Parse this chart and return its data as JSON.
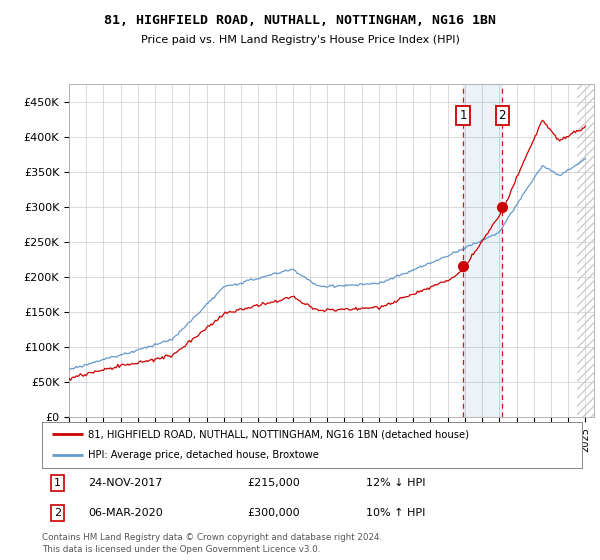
{
  "title": "81, HIGHFIELD ROAD, NUTHALL, NOTTINGHAM, NG16 1BN",
  "subtitle": "Price paid vs. HM Land Registry's House Price Index (HPI)",
  "ylim": [
    0,
    475000
  ],
  "yticks": [
    0,
    50000,
    100000,
    150000,
    200000,
    250000,
    300000,
    350000,
    400000,
    450000
  ],
  "ytick_labels": [
    "£0",
    "£50K",
    "£100K",
    "£150K",
    "£200K",
    "£250K",
    "£300K",
    "£350K",
    "£400K",
    "£450K"
  ],
  "xlim_start": 1995.0,
  "xlim_end": 2025.5,
  "line1_color": "#cc0000",
  "line2_color": "#6699cc",
  "marker1_date": 2017.9,
  "marker2_date": 2020.17,
  "marker1_price": 215000,
  "marker2_price": 300000,
  "transaction1": [
    "1",
    "24-NOV-2017",
    "£215,000",
    "12% ↓ HPI"
  ],
  "transaction2": [
    "2",
    "06-MAR-2020",
    "£300,000",
    "10% ↑ HPI"
  ],
  "legend1": "81, HIGHFIELD ROAD, NUTHALL, NOTTINGHAM, NG16 1BN (detached house)",
  "legend2": "HPI: Average price, detached house, Broxtowe",
  "footnote": "Contains HM Land Registry data © Crown copyright and database right 2024.\nThis data is licensed under the Open Government Licence v3.0.",
  "background_color": "#ffffff",
  "plot_bg_color": "#ffffff",
  "grid_color": "#cccccc"
}
